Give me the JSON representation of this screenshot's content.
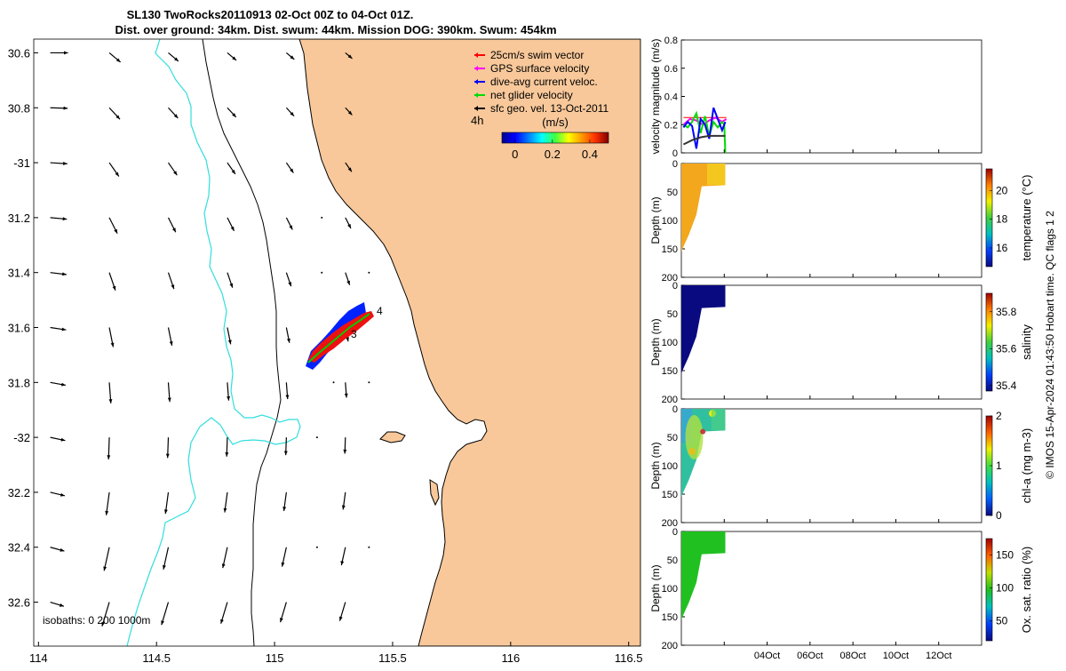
{
  "header": {
    "title_line1": "SL130 TwoRocks20110913 02-Oct 00Z to 04-Oct 01Z.",
    "title_line2": "Dist. over ground: 34km. Dist. swum: 44km. Mission DOG: 390km. Swum: 454km"
  },
  "map": {
    "xticks": [
      114,
      114.5,
      115,
      115.5,
      116,
      116.5
    ],
    "yticks": [
      -30.6,
      -30.8,
      -31,
      -31.2,
      -31.4,
      -31.6,
      -31.8,
      -32,
      -32.2,
      -32.4,
      -32.6
    ],
    "ytick_labels": [
      "30.6",
      "30.8",
      "-31",
      "31.2",
      "31.4",
      "31.6",
      "31.8",
      "-32",
      "32.2",
      "32.4",
      "32.6"
    ],
    "xlim": [
      113.98,
      116.55
    ],
    "ylim": [
      -32.76,
      -30.55
    ],
    "land_color": "#f8c89a",
    "isobath_label": "isobaths: 0   200  1000m",
    "track_labels": [
      "4",
      "3"
    ],
    "legend": {
      "items": [
        {
          "label": "25cm/s swim vector",
          "color": "#ff0000"
        },
        {
          "label": "GPS surface velocity",
          "color": "#ff00ff"
        },
        {
          "label": "dive-avg current veloc.",
          "color": "#0000ff"
        },
        {
          "label": "net glider velocity",
          "color": "#00dd00"
        },
        {
          "label": "sfc geo. vel. 13-Oct-2011",
          "color": "#000000"
        }
      ],
      "time_label": "4h"
    },
    "colorbar": {
      "title": "(m/s)",
      "ticks": [
        0,
        0.2,
        0.4
      ],
      "tick_labels": [
        "0",
        "0.2",
        "0.4"
      ],
      "range": [
        -0.07,
        0.5
      ]
    }
  },
  "chart_data": [
    {
      "type": "line",
      "ylabel": "velocity magnitude (m/s)",
      "ylim": [
        0,
        0.8
      ],
      "yticks": [
        0,
        0.2,
        0.4,
        0.6,
        0.8
      ],
      "xlim": [
        0,
        14
      ],
      "series": [
        {
          "color": "#ff0000",
          "x": [
            0.1,
            0.4,
            0.7,
            1.0,
            1.3,
            1.6,
            1.9,
            2.1
          ],
          "y": [
            0.25,
            0.25,
            0.25,
            0.25,
            0.25,
            0.25,
            0.25,
            0.25
          ]
        },
        {
          "color": "#ff00ff",
          "x": [
            0.1,
            0.4,
            0.7,
            1.0,
            1.3,
            1.6,
            1.9,
            2.1
          ],
          "y": [
            0.2,
            0.24,
            0.23,
            0.2,
            0.23,
            0.25,
            0.22,
            0.24
          ]
        },
        {
          "color": "#00dd00",
          "x": [
            0.1,
            0.3,
            0.5,
            0.7,
            0.9,
            1.1,
            1.3,
            1.5,
            1.7,
            1.9,
            2.0,
            2.05
          ],
          "y": [
            0.2,
            0.18,
            0.22,
            0.28,
            0.14,
            0.26,
            0.12,
            0.22,
            0.18,
            0.22,
            0.2,
            0.0
          ]
        },
        {
          "color": "#0000ff",
          "x": [
            0.1,
            0.3,
            0.5,
            0.7,
            0.9,
            1.1,
            1.3,
            1.5,
            1.7,
            1.9,
            2.05
          ],
          "y": [
            0.18,
            0.22,
            0.19,
            0.03,
            0.24,
            0.2,
            0.1,
            0.32,
            0.24,
            0.16,
            0.22
          ]
        },
        {
          "color": "#333333",
          "x": [
            0.1,
            0.5,
            0.9,
            1.3,
            1.7,
            2.05
          ],
          "y": [
            0.06,
            0.09,
            0.11,
            0.12,
            0.12,
            0.12
          ]
        }
      ]
    },
    {
      "type": "heatmap",
      "variable": "temperature",
      "cbar_label": "temperature (°C)",
      "cbar_ticks": [
        16,
        18,
        20
      ],
      "cbar_range": [
        14.7,
        21.5
      ],
      "ylabel": "Depth (m)",
      "ylim": [
        200,
        0
      ],
      "yticks": [
        0,
        50,
        100,
        150,
        200
      ],
      "base_value": 20.3,
      "fill_color": "#f2a71c"
    },
    {
      "type": "heatmap",
      "variable": "salinity",
      "cbar_label": "salinity",
      "cbar_ticks": [
        35.4,
        35.6,
        35.8
      ],
      "cbar_range": [
        35.37,
        35.9
      ],
      "ylabel": "Depth (m)",
      "ylim": [
        200,
        0
      ],
      "yticks": [
        0,
        50,
        100,
        150,
        200
      ],
      "base_value": 35.38,
      "fill_color": "#0a0a80"
    },
    {
      "type": "heatmap",
      "variable": "chl-a",
      "cbar_label": "chl-a (mg m-3)",
      "cbar_ticks": [
        0,
        1,
        2
      ],
      "cbar_range": [
        0,
        2
      ],
      "ylabel": "Depth (m)",
      "ylim": [
        200,
        0
      ],
      "yticks": [
        0,
        50,
        100,
        150,
        200
      ],
      "base_value": 0.7,
      "fill_color": "#30c0a0"
    },
    {
      "type": "heatmap",
      "variable": "Ox. sat. ratio",
      "cbar_label": "Ox. sat. ratio (%)",
      "cbar_ticks": [
        50,
        100,
        150
      ],
      "cbar_range": [
        20,
        175
      ],
      "ylabel": "Depth (m)",
      "ylim": [
        200,
        0
      ],
      "yticks": [
        0,
        50,
        100,
        150,
        200
      ],
      "base_value": 100,
      "fill_color": "#20c020"
    }
  ],
  "timeaxis": {
    "ticks": [
      2,
      4,
      6,
      8,
      10,
      12
    ],
    "tick_labels": [
      "",
      "04Oct",
      "06Oct",
      "08Oct",
      "10Oct",
      "12Oct"
    ]
  },
  "credit": "© IMOS 15-Apr-2024 01:43:50 Hobart time. QC flags 1  2"
}
